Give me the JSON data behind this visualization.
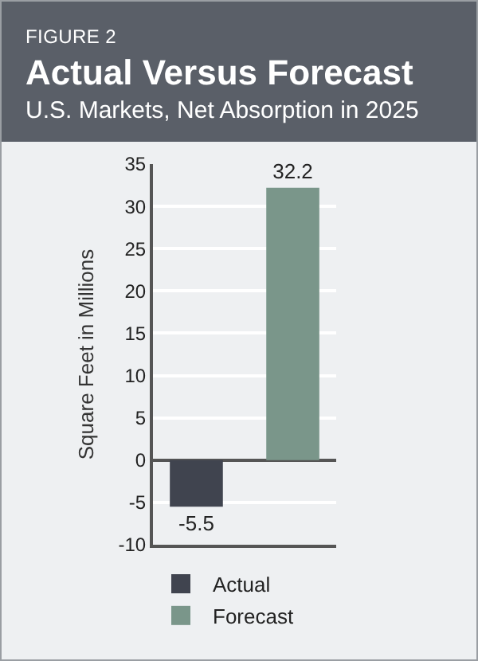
{
  "chart_data": {
    "type": "bar",
    "title": "Actual Versus Forecast",
    "subtitle": "U.S. Markets, Net Absorption in 2025",
    "annotations": [
      "FIGURE 2"
    ],
    "ylabel": "Square Feet in Millions",
    "categories": [
      null,
      null
    ],
    "series": [
      {
        "name": "Actual",
        "color": "#40444f",
        "values": [
          -5.5,
          null
        ]
      },
      {
        "name": "Forecast",
        "color": "#7a968a",
        "values": [
          null,
          32.2
        ]
      }
    ],
    "ylim": [
      -10,
      35
    ],
    "yticks": [
      -10,
      -5,
      0,
      5,
      10,
      15,
      20,
      25,
      30,
      35
    ],
    "grid": "y",
    "legend": "bottom",
    "data_labels": true
  }
}
